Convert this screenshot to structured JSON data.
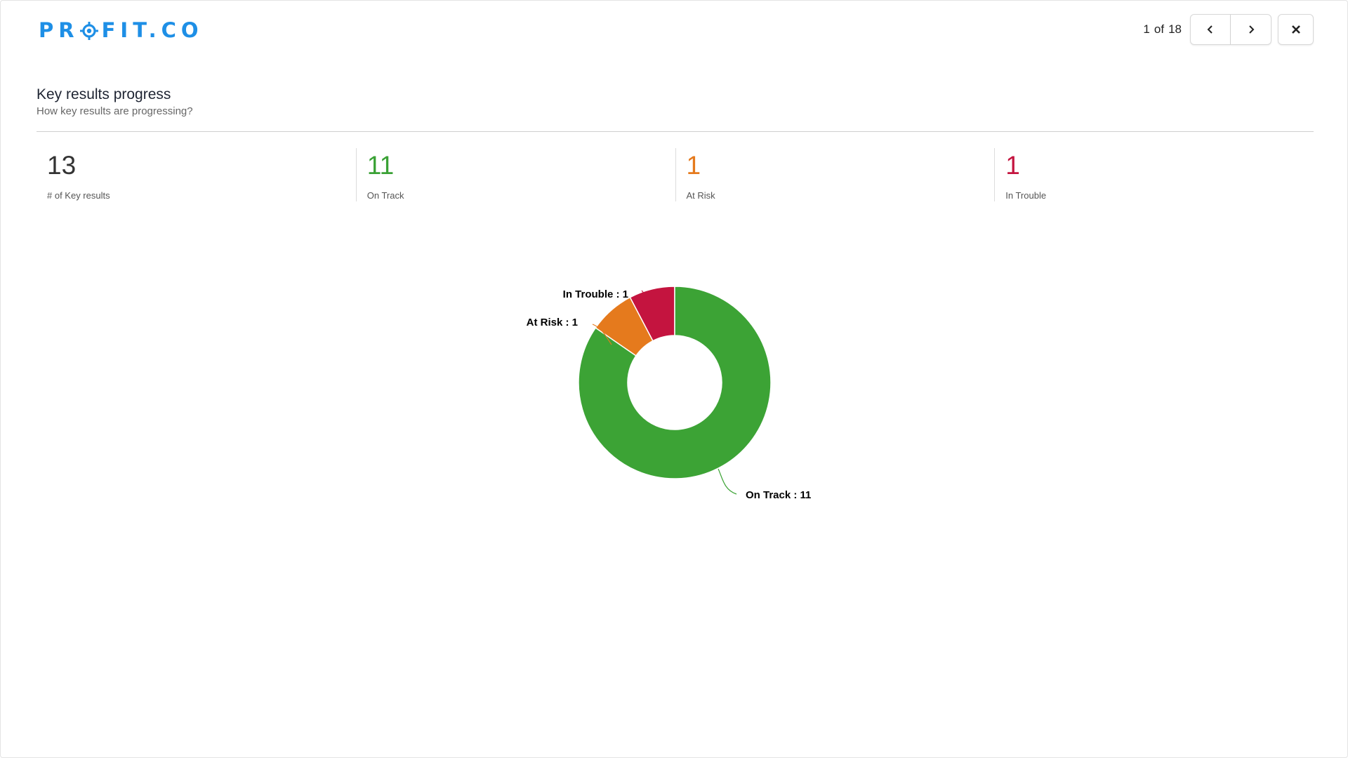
{
  "header": {
    "logo_text_left": "PR",
    "logo_text_right": "FIT.CO",
    "pager": {
      "current": "1",
      "of_label": "of",
      "total": "18"
    }
  },
  "section": {
    "title": "Key results progress",
    "subtitle": "How key results are progressing?"
  },
  "stats": [
    {
      "value": "13",
      "label": "# of Key results",
      "color": "#333333"
    },
    {
      "value": "11",
      "label": "On Track",
      "color": "#3aa135"
    },
    {
      "value": "1",
      "label": "At Risk",
      "color": "#e57a1d"
    },
    {
      "value": "1",
      "label": "In Trouble",
      "color": "#c4143f"
    }
  ],
  "colors": {
    "brand": "#1e8fe6",
    "on_track": "#3ca335",
    "at_risk": "#e57a1d",
    "in_trouble": "#c4143f"
  },
  "chart_data": {
    "type": "pie",
    "donut": true,
    "categories": [
      "In Trouble",
      "At Risk",
      "On Track"
    ],
    "values": [
      1,
      1,
      11
    ],
    "labels": [
      "In Trouble : 1",
      "At Risk : 1",
      "On Track : 11"
    ],
    "colors": [
      "#c4143f",
      "#e57a1d",
      "#3ca335"
    ]
  }
}
